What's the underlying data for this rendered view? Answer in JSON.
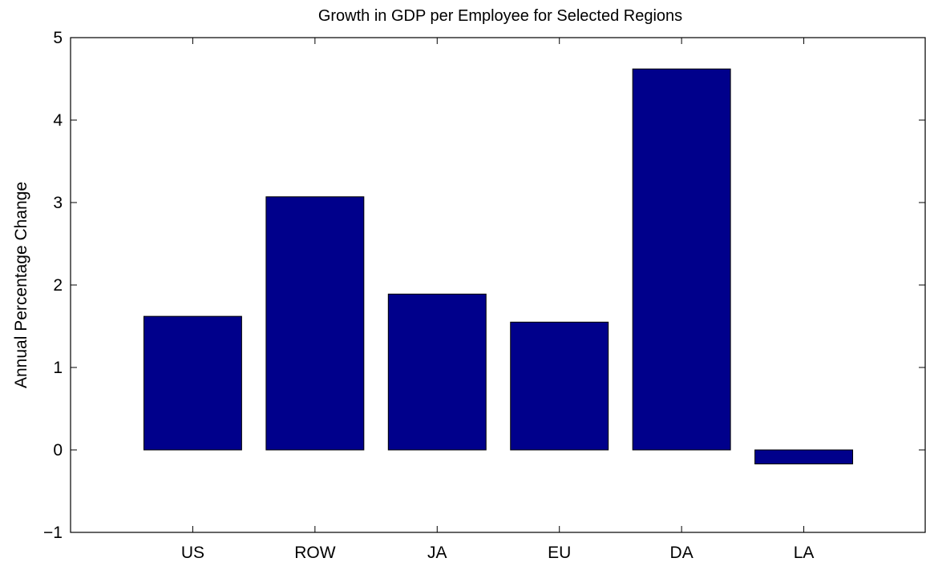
{
  "chart_data": {
    "type": "bar",
    "title": "Growth in GDP per Employee for Selected Regions",
    "xlabel": "",
    "ylabel": "Annual Percentage Change",
    "categories": [
      "US",
      "ROW",
      "JA",
      "EU",
      "DA",
      "LA"
    ],
    "values": [
      1.62,
      3.07,
      1.89,
      1.55,
      4.62,
      -0.17
    ],
    "ylim": [
      -1,
      5
    ],
    "yticks": [
      -1,
      0,
      1,
      2,
      3,
      4,
      5
    ],
    "ytick_labels": [
      "−1",
      "0",
      "1",
      "2",
      "3",
      "4",
      "5"
    ],
    "xlim": [
      0,
      7
    ],
    "bar_color": "#00008B",
    "grid": false,
    "legend": "none"
  }
}
